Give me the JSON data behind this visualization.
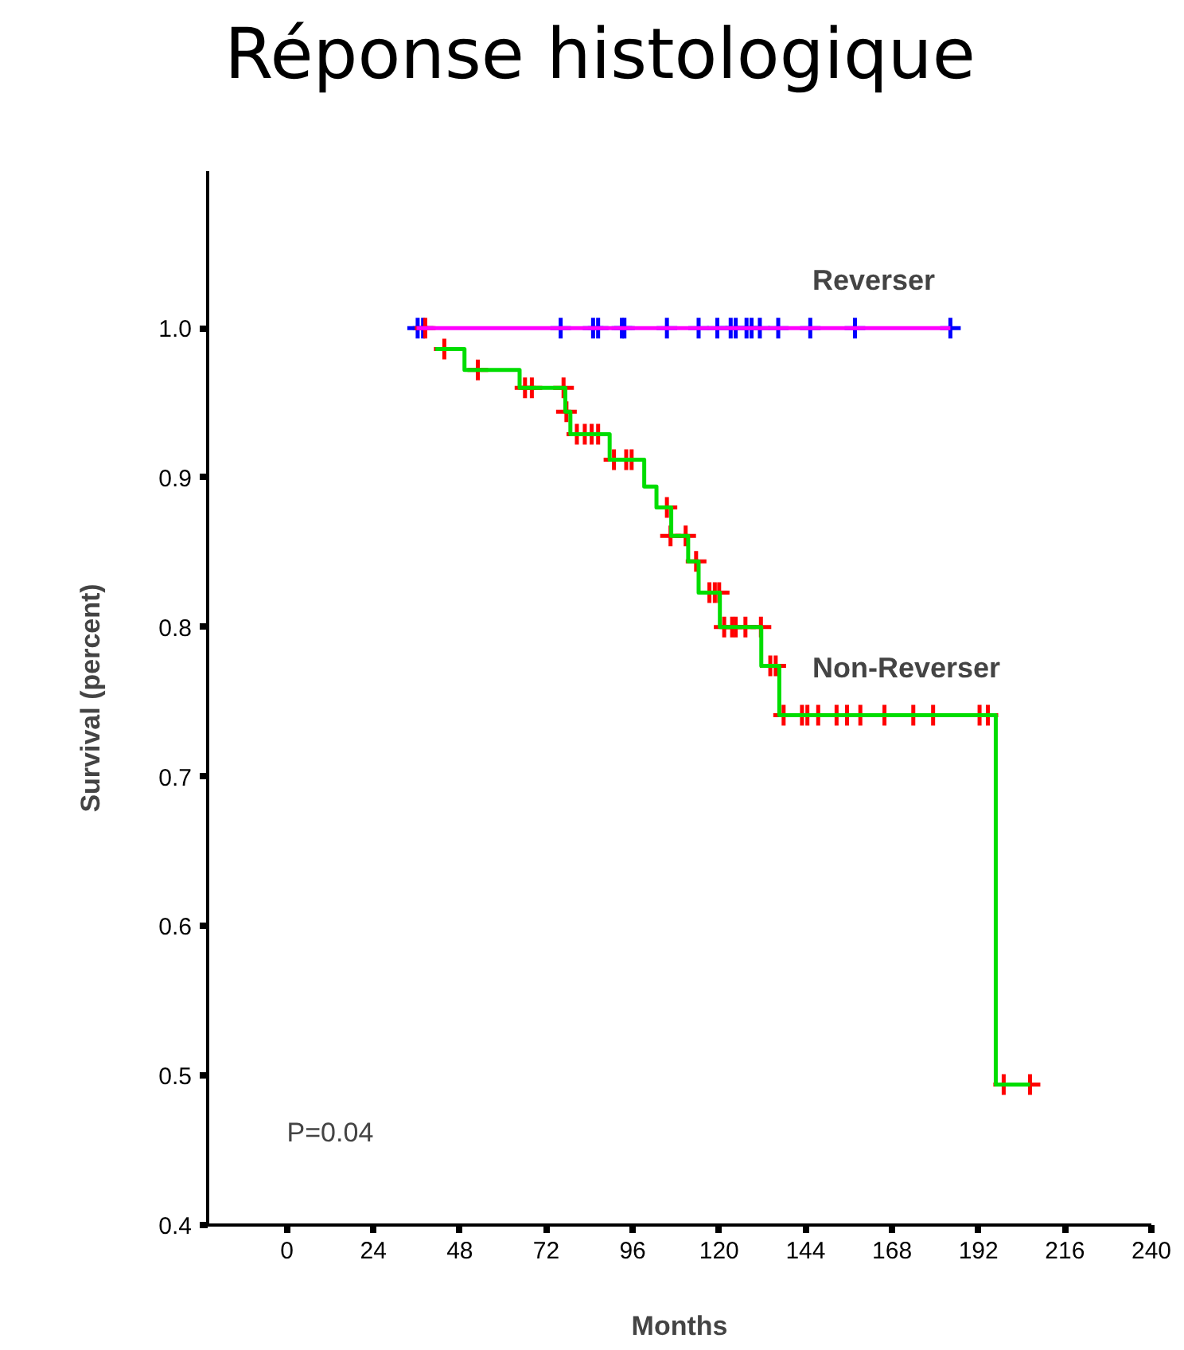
{
  "chart_data": {
    "type": "step",
    "title": "Réponse histologique",
    "xlabel": "Months",
    "ylabel": "Survival (percent)",
    "xlim": [
      -22,
      240
    ],
    "ylim": [
      0.4,
      1.105
    ],
    "xticks": [
      0,
      24,
      48,
      72,
      96,
      120,
      144,
      168,
      192,
      216,
      240
    ],
    "yticks": [
      {
        "value": 0.4,
        "label": "0.4"
      },
      {
        "value": 0.5,
        "label": "0.5"
      },
      {
        "value": 0.6,
        "label": "0.6"
      },
      {
        "value": 0.7,
        "label": "0.7"
      },
      {
        "value": 0.8,
        "label": "0.8"
      },
      {
        "value": 0.9,
        "label": "0.9"
      },
      {
        "value": 1.0,
        "label": "1.0"
      }
    ],
    "grid": false,
    "line_style": "solid",
    "series": [
      {
        "name": "Reverser",
        "color": "#ff00ff",
        "x": [
          36,
          184.2
        ],
        "values": [
          1.0,
          1.0
        ]
      },
      {
        "name": "Non-Reverser",
        "color": "#00dd00",
        "x": [
          41.2,
          49.3,
          64.6,
          77.3,
          78.7,
          89.6,
          99.2,
          102.6,
          106.7,
          111.4,
          114.3,
          120.2,
          131.7,
          136.7,
          196.8,
          206.3
        ],
        "values": [
          0.986,
          0.972,
          0.96,
          0.944,
          0.929,
          0.912,
          0.894,
          0.88,
          0.861,
          0.844,
          0.823,
          0.8,
          0.774,
          0.741,
          0.494,
          0.494
        ]
      },
      {
        "type": "scatter",
        "marker": "cross",
        "color": "#0000ff",
        "x": [
          36.3,
          37.8,
          76,
          85,
          86.4,
          93,
          93.7,
          105.5,
          114.3,
          119.5,
          123.2,
          124.6,
          127.6,
          129,
          131.3,
          136.4,
          145.3,
          157.7,
          184.2
        ],
        "values": [
          1,
          1,
          1,
          1,
          1,
          1,
          1,
          1,
          1,
          1,
          1,
          1,
          1,
          1,
          1,
          1,
          1,
          1,
          1
        ]
      },
      {
        "type": "scatter",
        "marker": "cross",
        "color": "#ff0000",
        "x": [
          38.4,
          43.7,
          53,
          66.1,
          68,
          76.8,
          77.6,
          80.5,
          82.7,
          84.6,
          86.4,
          90.8,
          94.2,
          95.7,
          105.5,
          106.5,
          110.7,
          113.6,
          117.3,
          118.8,
          120,
          121.4,
          123.6,
          124.6,
          127.3,
          131.6,
          134.2,
          135.7,
          137.9,
          143,
          144.5,
          147.5,
          152.6,
          155.5,
          159.2,
          165.9,
          173.9,
          179.4,
          192.3,
          194.6,
          199,
          206.3
        ],
        "values": [
          1,
          0.986,
          0.972,
          0.96,
          0.96,
          0.96,
          0.944,
          0.929,
          0.929,
          0.929,
          0.929,
          0.912,
          0.912,
          0.912,
          0.88,
          0.861,
          0.861,
          0.844,
          0.823,
          0.823,
          0.823,
          0.8,
          0.8,
          0.8,
          0.8,
          0.8,
          0.774,
          0.774,
          0.741,
          0.741,
          0.741,
          0.741,
          0.741,
          0.741,
          0.741,
          0.741,
          0.741,
          0.741,
          0.741,
          0.741,
          0.494,
          0.494
        ]
      }
    ],
    "annotations": [
      "P=0.04"
    ]
  }
}
